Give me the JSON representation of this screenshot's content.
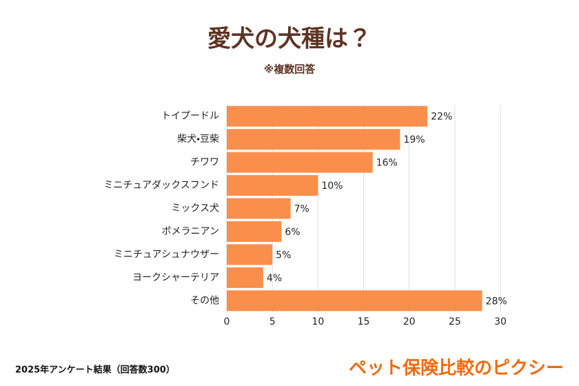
{
  "chart_data": {
    "type": "bar",
    "orientation": "horizontal",
    "title": "愛犬の犬種は？",
    "subtitle": "※複数回答",
    "categories": [
      "トイプードル",
      "柴犬・豆柴",
      "チワワ",
      "ミニチュアダックスフンド",
      "ミックス犬",
      "ポメラニアン",
      "ミニチュアシュナウザー",
      "ヨークシャーテリア",
      "その他"
    ],
    "values": [
      22,
      19,
      16,
      10,
      7,
      6,
      5,
      4,
      28
    ],
    "value_labels": [
      "22%",
      "19%",
      "16%",
      "10%",
      "7%",
      "6%",
      "5%",
      "4%",
      "28%"
    ],
    "color": "#fa8f4b",
    "xlim": [
      0,
      30
    ],
    "xticks": [
      0,
      5,
      10,
      15,
      20,
      25,
      30
    ],
    "grid": true,
    "footnote": "2025年アンケート結果（回答数300）",
    "logo": "ペット保険比較のピクシー"
  }
}
